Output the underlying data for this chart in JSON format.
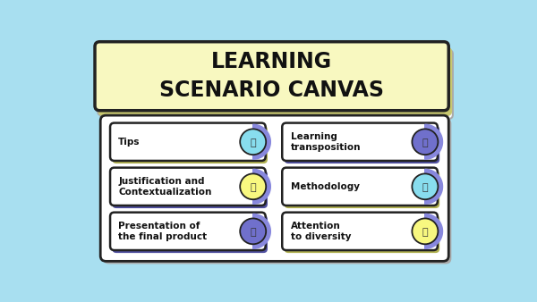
{
  "background_color": "#a8dff0",
  "title": "LEARNING\nSCENARIO CANVAS",
  "title_bg": "#f8f8c0",
  "title_border": "#222222",
  "title_shadow_light": "#e8e8e8",
  "title_shadow_dark": "#c8c870",
  "main_panel_bg": "#ffffff",
  "main_panel_border": "#222222",
  "card_bg": "#ffffff",
  "card_border": "#222222",
  "cards": [
    {
      "label": "Tips",
      "row": 0,
      "col": 0,
      "icon_color": "#88ddee",
      "shadow": "#c8c860"
    },
    {
      "label": "Learning\ntransposition",
      "row": 0,
      "col": 1,
      "icon_color": "#7070cc",
      "shadow": "#6060a0"
    },
    {
      "label": "Justification and\nContextualization",
      "row": 1,
      "col": 0,
      "icon_color": "#f8f880",
      "shadow": "#6060a0"
    },
    {
      "label": "Methodology",
      "row": 1,
      "col": 1,
      "icon_color": "#88ddee",
      "shadow": "#c8c860"
    },
    {
      "label": "Presentation of\nthe final product",
      "row": 2,
      "col": 0,
      "icon_color": "#7070cc",
      "shadow": "#6060a0"
    },
    {
      "label": "Attention\nto diversity",
      "row": 2,
      "col": 1,
      "icon_color": "#f8f880",
      "shadow": "#c8c860"
    }
  ],
  "icon_half_circle_color": "#8888dd",
  "text_color": "#111111",
  "title_fontsize": 17,
  "label_fontsize": 7.5
}
